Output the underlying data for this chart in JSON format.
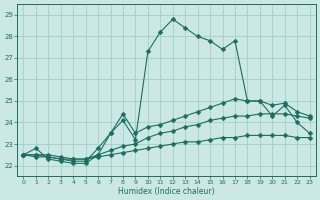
{
  "xlabel": "Humidex (Indice chaleur)",
  "x_ticks": [
    0,
    1,
    2,
    3,
    4,
    5,
    6,
    7,
    8,
    9,
    10,
    11,
    12,
    13,
    14,
    15,
    16,
    17,
    18,
    19,
    20,
    21,
    22,
    23
  ],
  "ylim": [
    21.5,
    29.5
  ],
  "xlim": [
    -0.5,
    23.5
  ],
  "y_ticks": [
    22,
    23,
    24,
    25,
    26,
    27,
    28,
    29
  ],
  "bg_color": "#cce8e4",
  "grid_color": "#99ccc6",
  "line_color": "#1a6e62",
  "series": {
    "main": [
      22.5,
      22.8,
      22.3,
      22.2,
      22.1,
      22.1,
      22.5,
      23.5,
      24.1,
      23.2,
      27.3,
      28.2,
      28.8,
      28.4,
      28.0,
      27.8,
      27.4,
      27.8,
      25.0,
      25.0,
      24.3,
      24.8,
      24.0,
      23.5
    ],
    "line2": [
      22.5,
      22.5,
      22.4,
      22.3,
      22.2,
      22.2,
      22.8,
      23.5,
      24.4,
      23.5,
      23.8,
      23.9,
      24.1,
      24.3,
      24.5,
      24.7,
      24.9,
      25.1,
      25.0,
      25.0,
      24.8,
      24.9,
      24.5,
      24.3
    ],
    "line3": [
      22.5,
      22.5,
      22.5,
      22.4,
      22.3,
      22.3,
      22.5,
      22.7,
      22.9,
      23.0,
      23.3,
      23.5,
      23.6,
      23.8,
      23.9,
      24.1,
      24.2,
      24.3,
      24.3,
      24.4,
      24.4,
      24.4,
      24.3,
      24.2
    ],
    "line4": [
      22.5,
      22.4,
      22.4,
      22.3,
      22.3,
      22.3,
      22.4,
      22.5,
      22.6,
      22.7,
      22.8,
      22.9,
      23.0,
      23.1,
      23.1,
      23.2,
      23.3,
      23.3,
      23.4,
      23.4,
      23.4,
      23.4,
      23.3,
      23.3
    ]
  }
}
